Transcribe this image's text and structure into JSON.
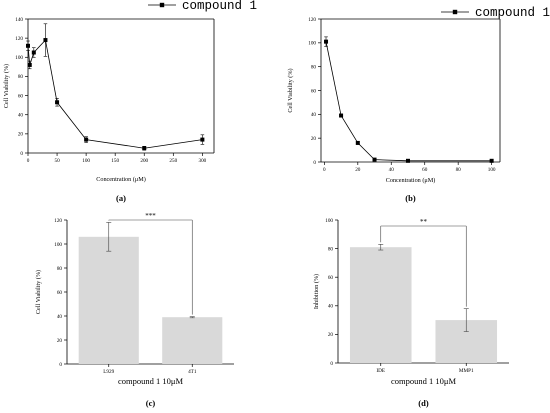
{
  "chart_data": [
    {
      "panel_label": "(a)",
      "type": "line",
      "xlabel": "Concentration (μM)",
      "ylabel": "Cell Viability (%)",
      "xlim": [
        0,
        320
      ],
      "ylim": [
        0,
        140
      ],
      "xticks": [
        0,
        50,
        100,
        150,
        200,
        250,
        300
      ],
      "yticks": [
        0,
        20,
        40,
        60,
        80,
        100,
        120,
        140
      ],
      "legend": "top-right",
      "grid": false,
      "series": [
        {
          "name": "compound 1",
          "color": "#000000",
          "marker": "square",
          "x": [
            0,
            3,
            10,
            30,
            50,
            100,
            200,
            300
          ],
          "y": [
            112,
            92,
            105,
            118,
            53,
            14,
            5,
            14
          ],
          "err": [
            5,
            4,
            5,
            17,
            4,
            3,
            2,
            5
          ]
        }
      ]
    },
    {
      "panel_label": "(b)",
      "type": "line",
      "xlabel": "Concentration (μM)",
      "ylabel": "Cell Viability (%)",
      "xlim": [
        -2,
        105
      ],
      "ylim": [
        0,
        120
      ],
      "xticks": [
        0,
        20,
        40,
        60,
        80,
        100
      ],
      "yticks": [
        0,
        20,
        40,
        60,
        80,
        100,
        120
      ],
      "legend": "top-right",
      "grid": false,
      "series": [
        {
          "name": "compound 1",
          "color": "#000000",
          "marker": "square",
          "x": [
            1,
            10,
            20,
            30,
            50,
            100
          ],
          "y": [
            101,
            39,
            16,
            2,
            1,
            1
          ],
          "err": [
            4,
            0.6,
            1,
            0.5,
            0.4,
            0.3
          ]
        }
      ]
    },
    {
      "panel_label": "(c)",
      "type": "bar",
      "xlabel": "compound 1 10μM",
      "ylabel": "Cell Viability (%)",
      "ylim": [
        0,
        120
      ],
      "yticks": [
        0,
        20,
        40,
        60,
        80,
        100,
        120
      ],
      "categories": [
        "L929",
        "4T1"
      ],
      "values": [
        106,
        39
      ],
      "err": [
        12,
        0.5
      ],
      "bar_color": "#d9d9d9",
      "significance": "***"
    },
    {
      "panel_label": "(d)",
      "type": "bar",
      "xlabel": "compound 1 10μM",
      "ylabel": "Inhibition (%)",
      "ylim": [
        0,
        100
      ],
      "yticks": [
        0,
        20,
        40,
        60,
        80,
        100
      ],
      "categories": [
        "IDE",
        "MMP1"
      ],
      "values": [
        81,
        30
      ],
      "err": [
        2,
        8
      ],
      "bar_color": "#d9d9d9",
      "significance": "**"
    }
  ]
}
